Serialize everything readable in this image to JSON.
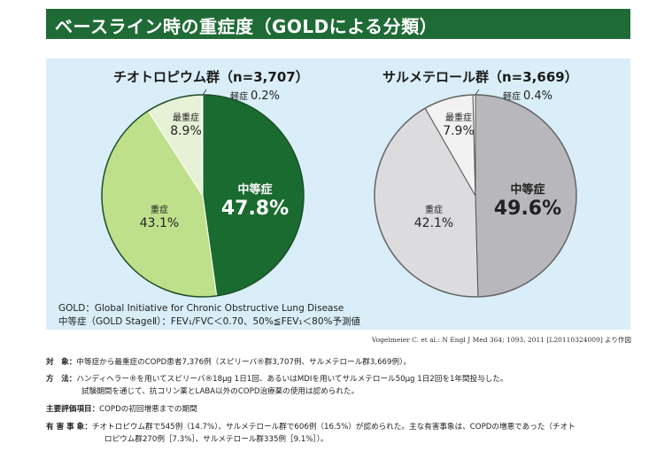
{
  "header": {
    "title": "ベースライン時の重症度（GOLDによる分類）"
  },
  "chart_data": [
    {
      "type": "pie",
      "title": "チオトロピウム群（n=3,707）",
      "slices": [
        {
          "label": "中等症",
          "value": 47.8,
          "display": "47.8%",
          "color": "#1a6b30"
        },
        {
          "label": "重症",
          "value": 43.1,
          "display": "43.1%",
          "color": "#bfe08a"
        },
        {
          "label": "最重症",
          "value": 8.9,
          "display": "8.9%",
          "color": "#e6f1d5"
        },
        {
          "label": "軽症",
          "value": 0.2,
          "display": "0.2%",
          "color": "#ffffff"
        }
      ]
    },
    {
      "type": "pie",
      "title": "サルメテロール群（n=3,669）",
      "slices": [
        {
          "label": "中等症",
          "value": 49.6,
          "display": "49.6%",
          "color": "#b8b8bc"
        },
        {
          "label": "重症",
          "value": 42.1,
          "display": "42.1%",
          "color": "#dcdcdf"
        },
        {
          "label": "最重症",
          "value": 7.9,
          "display": "7.9%",
          "color": "#f2f2f3"
        },
        {
          "label": "軽症",
          "value": 0.4,
          "display": "0.4%",
          "color": "#ffffff"
        }
      ]
    }
  ],
  "notes": {
    "gold": "GOLD：Global Initiative for Chronic Obstructive Lung Disease",
    "moderate": "中等症（GOLD StageⅡ）：FEV₁/FVC＜0.70、50%≦FEV₁＜80%予測値"
  },
  "citation": "Vogelmeier C. et al.: N Engl J Med 364; 1093, 2011 [L20110324009] より作図",
  "info": {
    "subjects": {
      "key": "対　象：",
      "text": "中等症から最重症のCOPD患者7,376例（スピリーバ®群3,707例、サルメテロール群3,669例）。"
    },
    "method": {
      "key": "方　法：",
      "line1": "ハンディヘラー®を用いてスピリーバ®18μg 1日1回、あるいはMDIを用いてサルメテロール50μg 1日2回を1年間投与した。",
      "line2": "試験期間を通じて、抗コリン薬とLABA以外のCOPD治療薬の使用は認められた。"
    },
    "endpoint": {
      "key": "主要評価項目：",
      "text": "COPDの初回増悪までの期間"
    },
    "adverse": {
      "key": "有 害 事 象：",
      "line1": "チオトロピウム群で545例（14.7%）、サルメテロール群で606例（16.5%）が認められた。主な有害事象は、COPDの増悪であった（チオト",
      "line2": "ロピウム群270例［7.3%］、サルメテロール群335例［9.1%］）。"
    }
  }
}
